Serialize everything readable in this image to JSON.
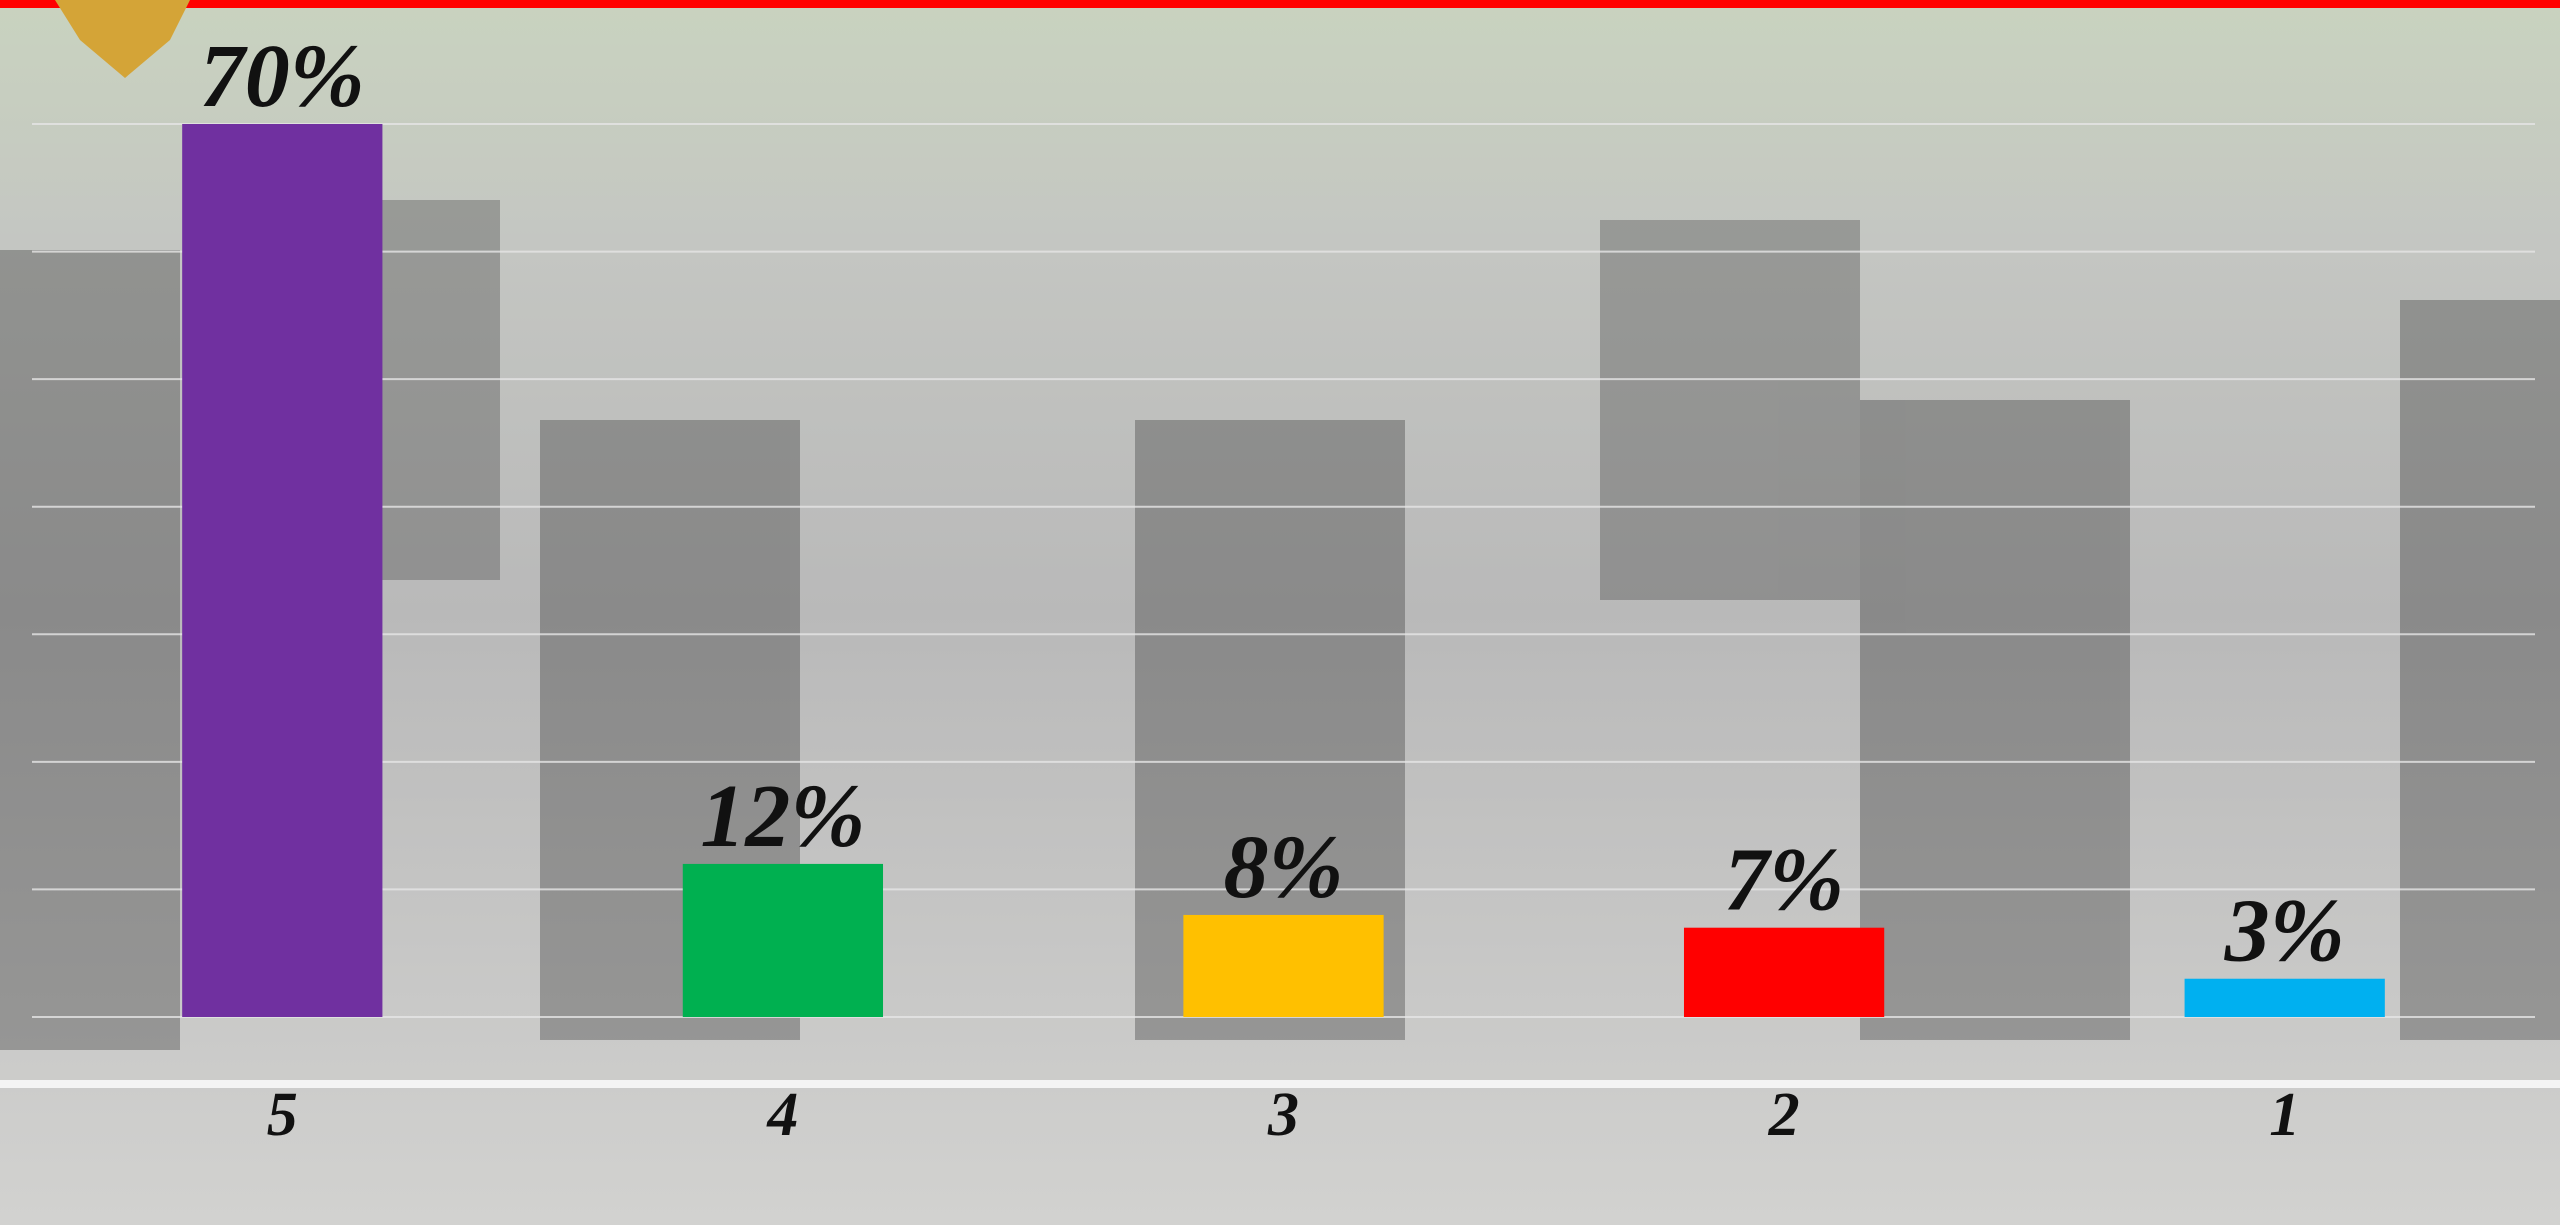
{
  "chart_data": {
    "type": "bar",
    "categories": [
      "5",
      "4",
      "3",
      "2",
      "1"
    ],
    "values": [
      70,
      12,
      8,
      7,
      3
    ],
    "value_labels": [
      "70%",
      "12%",
      "8%",
      "7%",
      "3%"
    ],
    "colors": [
      "#7030a0",
      "#00b050",
      "#ffc000",
      "#ff0000",
      "#00b0f0"
    ],
    "ylim": [
      0,
      70
    ],
    "yticks": [
      0,
      10,
      20,
      30,
      40,
      50,
      60,
      70
    ],
    "grid": true
  }
}
